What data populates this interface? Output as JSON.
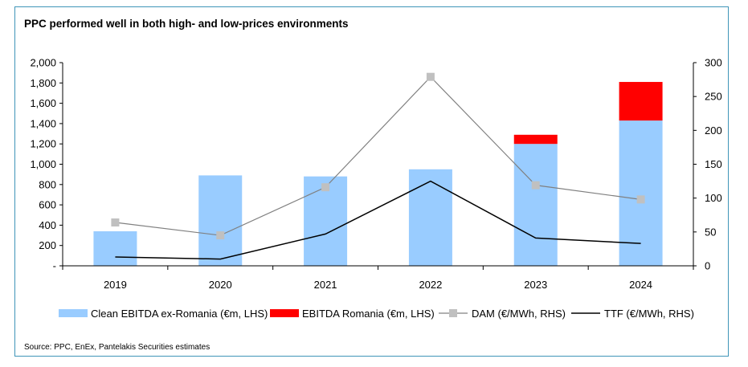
{
  "title": "PPC performed well in both high- and low-prices environments",
  "source": "Source: PPC, EnEx, Pantelakis Securities estimates",
  "chart_data": {
    "type": "bar",
    "categories": [
      "2019",
      "2020",
      "2021",
      "2022",
      "2023",
      "2024"
    ],
    "series": [
      {
        "name": "Clean EBITDA ex-Romania (€m, LHS)",
        "kind": "stacked-bar",
        "axis": "left",
        "color": "#99ccff",
        "values": [
          340,
          890,
          880,
          950,
          1200,
          1430
        ]
      },
      {
        "name": "EBITDA Romania (€m, LHS)",
        "kind": "stacked-bar",
        "axis": "left",
        "color": "#ff0000",
        "values": [
          0,
          0,
          0,
          0,
          90,
          380
        ]
      },
      {
        "name": "DAM (€/MWh, RHS)",
        "kind": "line-marker",
        "axis": "right",
        "color": "#808080",
        "marker_color": "#c0c0c0",
        "values": [
          64,
          45,
          116,
          279,
          119,
          98
        ]
      },
      {
        "name": "TTF (€/MWh, RHS)",
        "kind": "line",
        "axis": "right",
        "color": "#000000",
        "values": [
          13,
          10,
          47,
          125,
          41,
          33
        ]
      }
    ],
    "left_axis": {
      "range": [
        0,
        2000
      ],
      "ticks": [
        "-",
        "200",
        "400",
        "600",
        "800",
        "1,000",
        "1,200",
        "1,400",
        "1,600",
        "1,800",
        "2,000"
      ]
    },
    "right_axis": {
      "range": [
        0,
        300
      ],
      "ticks": [
        "0",
        "50",
        "100",
        "150",
        "200",
        "250",
        "300"
      ]
    },
    "xlabel": "",
    "ylabel": "",
    "legend_position": "bottom",
    "grid": false
  }
}
